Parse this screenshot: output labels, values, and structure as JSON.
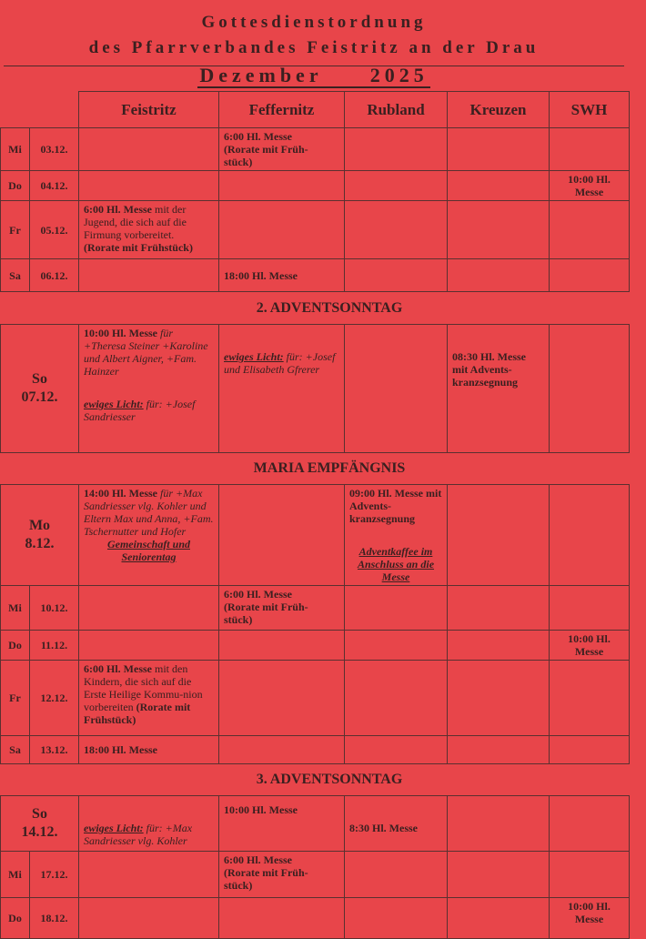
{
  "header": {
    "title": "Gottesdienstordnung",
    "subtitle": "des Pfarrverbandes Feistritz an der Drau",
    "month": "Dezember     2025"
  },
  "columns": [
    "Feistritz",
    "Feffernitz",
    "Rubland",
    "Kreuzen",
    "SWH"
  ],
  "rows": [
    {
      "type": "day",
      "day": "Mi",
      "date": "03.12.",
      "h": 47,
      "cells": [
        [],
        [
          [
            "b",
            "6:00 Hl. Messe"
          ],
          [
            "br"
          ],
          [
            "b",
            "(Rorate mit Früh-"
          ],
          [
            "br"
          ],
          [
            "b",
            "stück)"
          ]
        ],
        [],
        [],
        []
      ]
    },
    {
      "type": "day",
      "day": "Do",
      "date": "04.12.",
      "h": 30,
      "cells": [
        [],
        [],
        [],
        [],
        [
          [
            "bc",
            "10:00 Hl. Messe"
          ]
        ]
      ]
    },
    {
      "type": "day",
      "day": "Fr",
      "date": "05.12.",
      "h": 64,
      "cells": [
        [
          [
            "b",
            "6:00 Hl. Messe"
          ],
          [
            "n",
            " mit der Jugend, die sich auf die Firmung vorbereitet."
          ],
          [
            "br"
          ],
          [
            "b",
            "(Rorate mit Frühstück)"
          ]
        ],
        [],
        [],
        [],
        []
      ]
    },
    {
      "type": "day",
      "day": "Sa",
      "date": "06.12.",
      "h": 36,
      "valign": "middle",
      "cells": [
        [],
        [
          [
            "b",
            "18:00 Hl. Messe"
          ]
        ],
        [],
        [],
        []
      ]
    },
    {
      "type": "section",
      "label": "2. ADVENTSONNTAG",
      "h": 36
    },
    {
      "type": "day",
      "big": true,
      "day": "So",
      "date": "07.12.",
      "h": 141,
      "cells": [
        [
          [
            "b",
            "10:00 Hl. Messe"
          ],
          [
            "i",
            " für +Theresa Steiner +Karoline und Albert Aigner, +Fam. Hainzer"
          ],
          [
            "gap"
          ],
          [
            "biu",
            "ewiges Licht:"
          ],
          [
            "i",
            " für: +Josef Sandriesser"
          ]
        ],
        [
          [
            "gap2"
          ],
          [
            "biu",
            "ewiges Licht:"
          ],
          [
            "i",
            " für: +Josef und Elisabeth Gfrerer"
          ]
        ],
        [],
        [
          [
            "gap2"
          ],
          [
            "b",
            "08:30 Hl. Messe mit Advents-kranzsegnung"
          ]
        ],
        []
      ]
    },
    {
      "type": "section",
      "label": "MARIA EMPFÄNGNIS",
      "h": 35
    },
    {
      "type": "day",
      "big": true,
      "day": "Mo",
      "date": "8.12.",
      "h": 108,
      "cells": [
        [
          [
            "b",
            "14:00 Hl. Messe"
          ],
          [
            "i",
            " für +Max Sandriesser vlg. Kohler und Eltern Max und Anna, +Fam. Tschernutter und Hofer"
          ],
          [
            "br"
          ],
          [
            "biuc",
            "Gemeinschaft und Seniorentag"
          ]
        ],
        [],
        [
          [
            "b",
            "09:00 Hl. Messe mit Advents-kranzsegnung"
          ],
          [
            "gap"
          ],
          [
            "biuc",
            "Adventkaffee im Anschluss an die Messe"
          ]
        ],
        [],
        []
      ]
    },
    {
      "type": "day",
      "day": "Mi",
      "date": "10.12.",
      "h": 49,
      "cells": [
        [],
        [
          [
            "b",
            "6:00 Hl. Messe"
          ],
          [
            "br"
          ],
          [
            "b",
            "(Rorate mit Früh-"
          ],
          [
            "br"
          ],
          [
            "b",
            "stück)"
          ]
        ],
        [],
        [],
        []
      ]
    },
    {
      "type": "day",
      "day": "Do",
      "date": "11.12.",
      "h": 30,
      "cells": [
        [],
        [],
        [],
        [],
        [
          [
            "bc",
            "10:00 Hl. Messe"
          ]
        ]
      ]
    },
    {
      "type": "day",
      "day": "Fr",
      "date": "12.12.",
      "h": 83,
      "cells": [
        [
          [
            "b",
            "6:00 Hl. Messe"
          ],
          [
            "n",
            " mit den Kindern, die sich auf die Erste Heilige Kommu-nion vorbereiten "
          ],
          [
            "b",
            "(Rorate mit Frühstück)"
          ]
        ],
        [],
        [],
        [],
        []
      ]
    },
    {
      "type": "day",
      "day": "Sa",
      "date": "13.12.",
      "h": 31,
      "valign": "middle",
      "cells": [
        [
          [
            "b",
            "18:00 Hl. Messe"
          ]
        ],
        [],
        [],
        [],
        []
      ]
    },
    {
      "type": "section",
      "label": "3. ADVENTSONNTAG",
      "h": 35
    },
    {
      "type": "day",
      "big": true,
      "day": "So",
      "date": "14.12.",
      "h": 61,
      "cells": [
        [
          [
            "gap2"
          ],
          [
            "biu",
            "ewiges Licht:"
          ],
          [
            "i",
            " für: +Max Sandriesser vlg. Kohler"
          ]
        ],
        [
          [
            "gap3"
          ],
          [
            "b",
            "10:00 Hl. Messe"
          ]
        ],
        [
          [
            "gap2"
          ],
          [
            "b",
            "8:30 Hl. Messe"
          ]
        ],
        [],
        []
      ]
    },
    {
      "type": "day",
      "day": "Mi",
      "date": "17.12.",
      "h": 51,
      "cells": [
        [],
        [
          [
            "b",
            "6:00 Hl. Messe"
          ],
          [
            "br"
          ],
          [
            "b",
            "(Rorate mit Früh-"
          ],
          [
            "br"
          ],
          [
            "b",
            "stück)"
          ]
        ],
        [],
        [],
        []
      ]
    },
    {
      "type": "day",
      "day": "Do",
      "date": "18.12.",
      "h": 45,
      "cells": [
        [],
        [],
        [],
        [],
        [
          [
            "bc",
            "10:00 Hl. Messe"
          ]
        ]
      ]
    }
  ]
}
